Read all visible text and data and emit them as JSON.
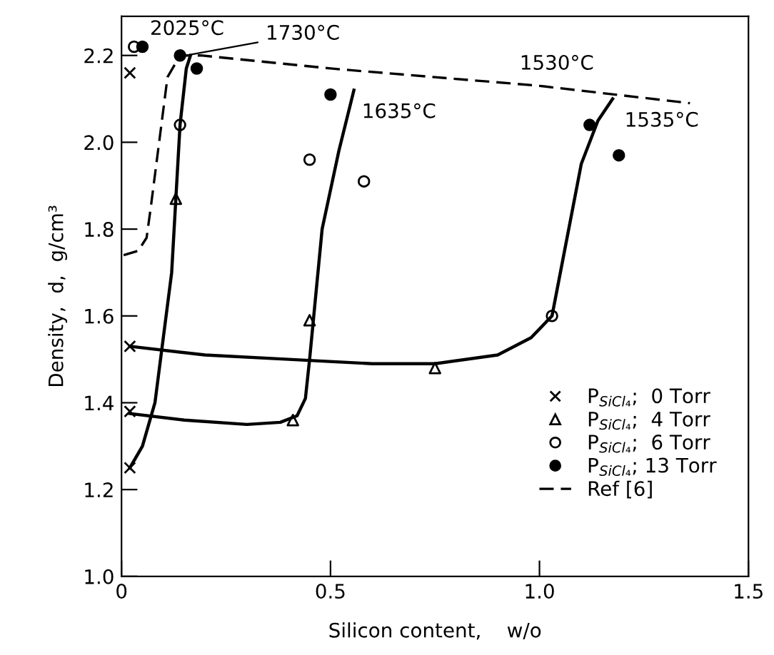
{
  "chart_data": {
    "type": "scatter",
    "xlabel": "Silicon content,    w/o",
    "ylabel": "Density,  d,  g/cm³",
    "xlim": [
      0,
      1.5
    ],
    "ylim": [
      1.0,
      2.29
    ],
    "xticks": [
      0,
      0.5,
      {
        "value": 1.0,
        "label": "1.0"
      },
      1.5
    ],
    "yticks": [
      {
        "value": 1.0,
        "label": "1.0"
      },
      1.2,
      1.4,
      1.6,
      1.8,
      {
        "value": 2.0,
        "label": "2.0"
      },
      2.2
    ],
    "grid": false,
    "legend": "bottom right",
    "series": [
      {
        "name": "P$_{SiCl₄}$;  0 Torr",
        "marker": "cross",
        "color": "#000000",
        "x": [
          0.02,
          0.02,
          0.02,
          0.02
        ],
        "values": [
          2.16,
          1.53,
          1.38,
          1.25
        ]
      },
      {
        "name": "P$_{SiCl₄}$;  4 Torr",
        "marker": "triangle",
        "color": "#000000",
        "x": [
          0.13,
          0.45,
          0.41,
          0.75
        ],
        "values": [
          1.87,
          1.59,
          1.36,
          1.48
        ]
      },
      {
        "name": "P$_{SiCl₄}$;  6 Torr",
        "marker": "circle",
        "color": "#000000",
        "x": [
          0.03,
          0.14,
          0.45,
          0.58,
          1.03
        ],
        "values": [
          2.22,
          2.04,
          1.96,
          1.91,
          1.6
        ]
      },
      {
        "name": "P$_{SiCl₄}$; 13 Torr",
        "marker": "dot",
        "color": "#000000",
        "x": [
          0.05,
          0.14,
          0.18,
          0.5,
          1.12,
          1.19
        ],
        "values": [
          2.22,
          2.2,
          2.17,
          2.11,
          2.04,
          1.97
        ]
      },
      {
        "type": "line",
        "line_style": "solid",
        "color": "#000000",
        "x": [
          0.02,
          0.05,
          0.08,
          0.1,
          0.12,
          0.13,
          0.14,
          0.155,
          0.165
        ],
        "values": [
          1.25,
          1.3,
          1.4,
          1.55,
          1.7,
          1.87,
          2.04,
          2.17,
          2.2
        ]
      },
      {
        "type": "line",
        "line_style": "solid",
        "color": "#000000",
        "x": [
          0.02,
          0.15,
          0.3,
          0.38,
          0.42,
          0.44,
          0.45,
          0.46,
          0.48,
          0.52,
          0.556
        ],
        "values": [
          1.375,
          1.36,
          1.35,
          1.355,
          1.37,
          1.41,
          1.5,
          1.6,
          1.8,
          1.98,
          2.12
        ]
      },
      {
        "type": "line",
        "line_style": "solid",
        "color": "#000000",
        "x": [
          0.02,
          0.2,
          0.4,
          0.6,
          0.75,
          0.9,
          0.98,
          1.03,
          1.06,
          1.1,
          1.14,
          1.175
        ],
        "values": [
          1.53,
          1.51,
          1.5,
          1.49,
          1.49,
          1.51,
          1.55,
          1.6,
          1.75,
          1.95,
          2.05,
          2.1
        ]
      },
      {
        "name": "Ref [6]",
        "type": "line",
        "line_style": "dashed",
        "color": "#000000",
        "x": [
          0.005,
          0.04,
          0.06,
          0.07,
          0.09,
          0.11,
          0.14,
          0.19,
          0.5,
          1.0,
          1.36
        ],
        "values": [
          1.74,
          1.75,
          1.78,
          1.85,
          2.0,
          2.15,
          2.2,
          2.2,
          2.17,
          2.13,
          2.09
        ]
      }
    ],
    "annotations": [
      {
        "text": "2025°C",
        "x": 0.03,
        "y": 2.22
      },
      {
        "text": "1730°C",
        "x": 0.155,
        "y": 2.2
      },
      {
        "text": "1635°C",
        "x": 0.556,
        "y": 2.12
      },
      {
        "text": "1530°C",
        "x": 1.0,
        "y": 2.14
      },
      {
        "text": "1535°C",
        "x": 1.175,
        "y": 2.1
      }
    ]
  }
}
